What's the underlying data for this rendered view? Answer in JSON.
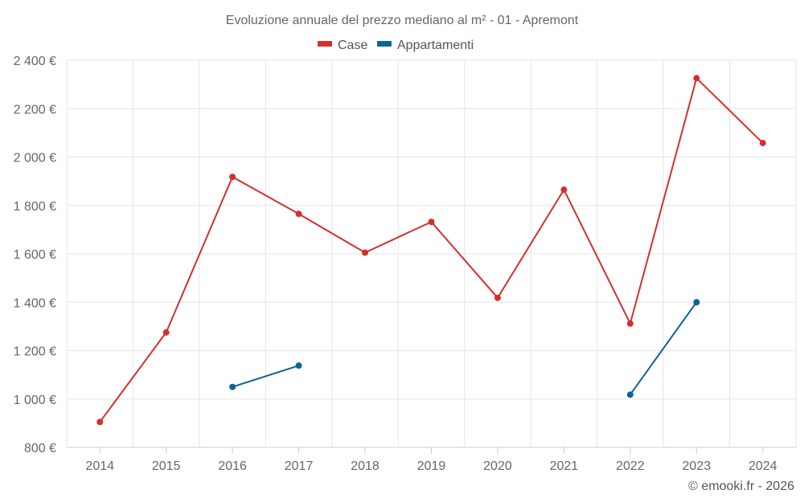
{
  "chart_data": {
    "type": "line",
    "title": "Evoluzione annuale del prezzo mediano al m² - 01 - Apremont",
    "categories": [
      "2014",
      "2015",
      "2016",
      "2017",
      "2018",
      "2019",
      "2020",
      "2021",
      "2022",
      "2023",
      "2024"
    ],
    "y_ticks": [
      800,
      1000,
      1200,
      1400,
      1600,
      1800,
      2000,
      2200,
      2400
    ],
    "y_tick_labels": [
      "800 €",
      "1 000 €",
      "1 200 €",
      "1 400 €",
      "1 600 €",
      "1 800 €",
      "2 000 €",
      "2 200 €",
      "2 400 €"
    ],
    "ylim": [
      800,
      2400
    ],
    "grid": true,
    "legend_position": "top-center",
    "series": [
      {
        "name": "Case",
        "color": "#d32f2f",
        "values": [
          905,
          1275,
          1918,
          1765,
          1605,
          1732,
          1418,
          1865,
          1312,
          2326,
          2058
        ]
      },
      {
        "name": "Appartamenti",
        "color": "#0a6399",
        "values": [
          null,
          null,
          1050,
          1138,
          null,
          null,
          null,
          null,
          1018,
          1400,
          null
        ]
      }
    ]
  },
  "credit": "© emooki.fr - 2026"
}
